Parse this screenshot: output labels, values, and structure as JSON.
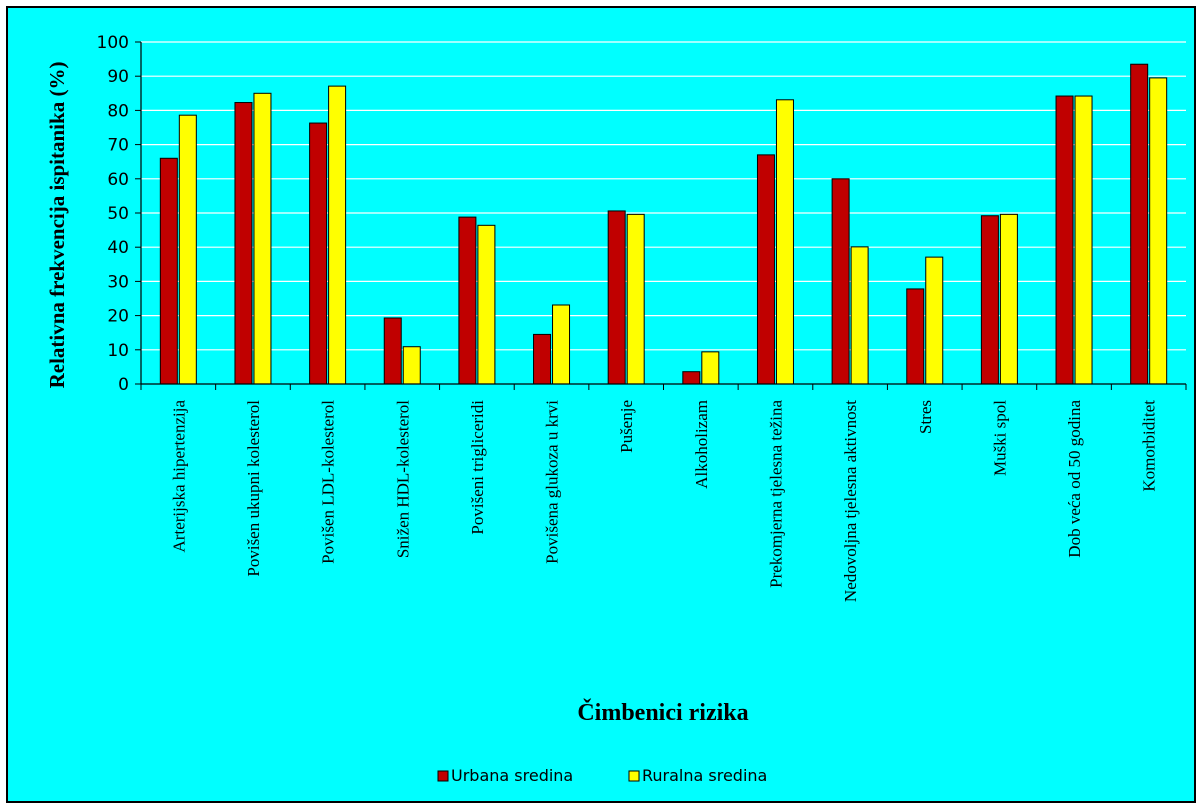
{
  "chart_data": {
    "type": "bar",
    "title": "",
    "xlabel": "Čimbenici rizika",
    "ylabel": "Relativna frekvencija ispitanika (%)",
    "ylim": [
      0,
      100
    ],
    "yticks": [
      0,
      10,
      20,
      30,
      40,
      50,
      60,
      70,
      80,
      90,
      100
    ],
    "grid": true,
    "legend_position": "bottom",
    "categories": [
      "Arterijska hipertenzija",
      "Povišen ukupni kolesterol",
      "Povišen LDL-kolesterol",
      "Snižen HDL-kolesterol",
      "Povišeni trigliceridi",
      "Povišena glukoza u krvi",
      "Pušenje",
      "Alkoholizam",
      "Prekomjerna tjelesna težina",
      "Nedovoljna tjelesna aktivnost",
      "Stres",
      "Muški spol",
      "Dob veća od 50 godina",
      "Komorbiditet"
    ],
    "series": [
      {
        "name": "Urbana sredina",
        "color": "#c00000",
        "values": [
          66,
          82.3,
          76.3,
          19.3,
          48.8,
          14.5,
          50.6,
          3.6,
          67,
          60,
          27.8,
          49.2,
          84.2,
          93.5
        ]
      },
      {
        "name": "Ruralna sredina",
        "color": "#ffff00",
        "values": [
          78.6,
          85,
          87.1,
          10.9,
          46.4,
          23.1,
          49.6,
          9.4,
          83.1,
          40.1,
          37.1,
          49.6,
          84.2,
          89.5
        ]
      }
    ]
  }
}
